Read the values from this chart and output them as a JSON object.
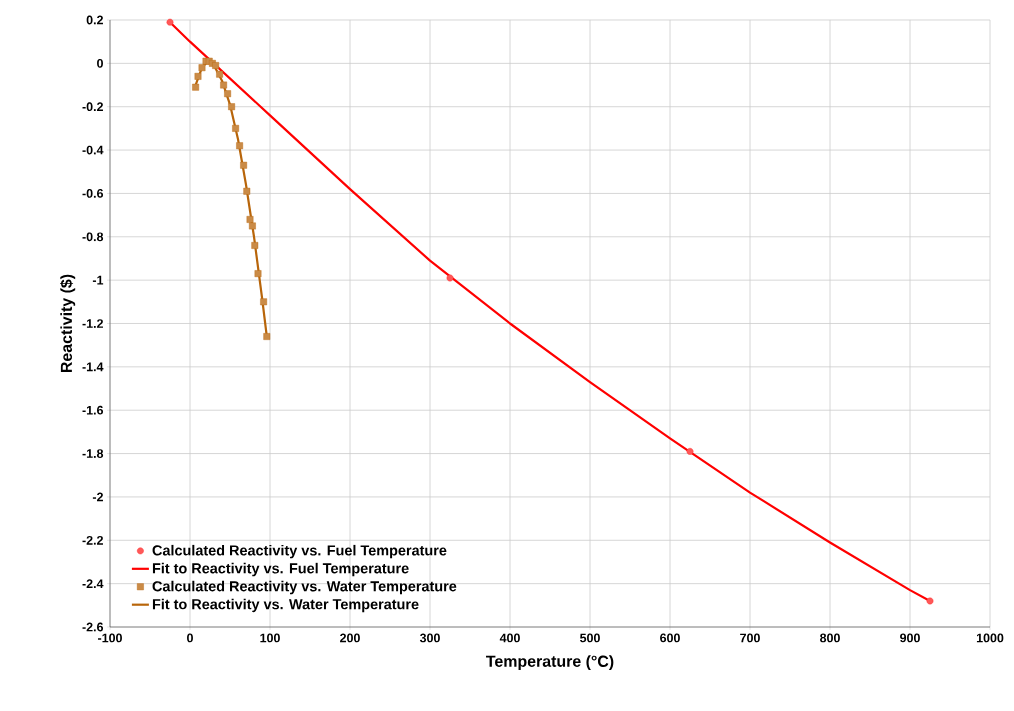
{
  "chart_data": {
    "type": "scatter",
    "xlabel": "Temperature (°C)",
    "ylabel": "Reactivity ($)",
    "xlim": [
      -100,
      1000
    ],
    "xticks": [
      -100,
      0,
      100,
      200,
      300,
      400,
      500,
      600,
      700,
      800,
      900,
      1000
    ],
    "ylim": [
      -2.6,
      0.2
    ],
    "yticks": [
      -2.6,
      -2.4,
      -2.2,
      -2,
      -1.8,
      -1.6,
      -1.4,
      -1.2,
      -1,
      -0.8,
      -0.6,
      -0.4,
      -0.2,
      0,
      0.2
    ],
    "grid": true,
    "legend": "bottom left",
    "series": [
      {
        "name": "Calculated Reactivity vs. Fuel Temperature",
        "marker": "circle",
        "color": "#ff2020",
        "x": [
          -25,
          325,
          625,
          925
        ],
        "values": [
          0.19,
          -0.99,
          -1.79,
          -2.48
        ]
      },
      {
        "name": "Fit to Reactivity vs. Fuel Temperature",
        "type": "line",
        "marker": "none",
        "color": "#ff0000",
        "x": [
          -25,
          0,
          100,
          200,
          300,
          400,
          500,
          600,
          700,
          800,
          900,
          925
        ],
        "values": [
          0.19,
          0.1,
          -0.24,
          -0.58,
          -0.91,
          -1.2,
          -1.47,
          -1.73,
          -1.98,
          -2.21,
          -2.43,
          -2.48
        ]
      },
      {
        "name": "Calculated Reactivity vs. Water Temperature",
        "marker": "square",
        "color": "#b8650a",
        "x": [
          7,
          10,
          15,
          20,
          24,
          28,
          32,
          37,
          42,
          47,
          52,
          57,
          62,
          67,
          71,
          75,
          78,
          81,
          85,
          92,
          96
        ],
        "values": [
          -0.11,
          -0.06,
          -0.02,
          0.01,
          0.01,
          0,
          -0.01,
          -0.05,
          -0.1,
          -0.14,
          -0.2,
          -0.3,
          -0.38,
          -0.47,
          -0.59,
          -0.72,
          -0.75,
          -0.84,
          -0.97,
          -1.1,
          -1.26
        ]
      },
      {
        "name": "Fit to Reactivity vs. Water Temperature",
        "type": "line",
        "marker": "none",
        "color": "#b8650a",
        "x": [
          7,
          15,
          22,
          30,
          40,
          50,
          60,
          70,
          80,
          90,
          96
        ],
        "values": [
          -0.1,
          -0.02,
          0.01,
          -0.01,
          -0.08,
          -0.19,
          -0.35,
          -0.56,
          -0.8,
          -1.08,
          -1.26
        ]
      }
    ]
  }
}
